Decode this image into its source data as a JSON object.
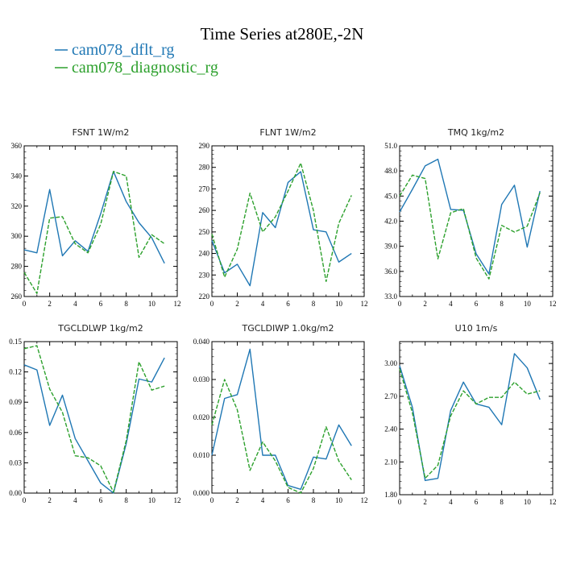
{
  "title": "Time Series at280E,-2N",
  "colors": {
    "dflt": "#1f77b4",
    "diag": "#2ca02c",
    "axis": "#000000"
  },
  "legend": [
    {
      "label": "cam078_dflt_rg",
      "color": "#1f77b4",
      "dashed": false
    },
    {
      "label": "cam078_diagnostic_rg",
      "color": "#2ca02c",
      "dashed": true
    }
  ],
  "chart_data": [
    {
      "type": "line",
      "title": "FSNT   1W/m2",
      "x": [
        0,
        1,
        2,
        3,
        4,
        5,
        6,
        7,
        8,
        9,
        10,
        11
      ],
      "xlim": [
        0,
        12
      ],
      "xticks": [
        "0",
        "2",
        "4",
        "6",
        "8",
        "10",
        "12"
      ],
      "ylim": [
        260,
        360
      ],
      "yticks": [
        "260",
        "280",
        "300",
        "320",
        "340",
        "360"
      ],
      "series": [
        {
          "name": "cam078_dflt_rg",
          "values": [
            291,
            289,
            331,
            287,
            297,
            290,
            315,
            343,
            323,
            309,
            299,
            282
          ]
        },
        {
          "name": "cam078_diagnostic_rg",
          "values": [
            276,
            262,
            312,
            313,
            295,
            289,
            308,
            343,
            340,
            286,
            301,
            295
          ]
        }
      ]
    },
    {
      "type": "line",
      "title": "FLNT   1W/m2",
      "x": [
        0,
        1,
        2,
        3,
        4,
        5,
        6,
        7,
        8,
        9,
        10,
        11
      ],
      "xlim": [
        0,
        12
      ],
      "xticks": [
        "0",
        "2",
        "4",
        "6",
        "8",
        "10",
        "12"
      ],
      "ylim": [
        220,
        290
      ],
      "yticks": [
        "220",
        "230",
        "240",
        "250",
        "260",
        "270",
        "280",
        "290"
      ],
      "series": [
        {
          "name": "cam078_dflt_rg",
          "values": [
            246,
            231,
            235,
            225,
            259,
            252,
            273,
            278,
            251,
            250,
            236,
            240
          ]
        },
        {
          "name": "cam078_diagnostic_rg",
          "values": [
            249,
            229,
            242,
            268,
            250,
            257,
            269,
            282,
            260,
            227,
            254,
            267
          ]
        }
      ]
    },
    {
      "type": "line",
      "title": "TMQ   1kg/m2",
      "x": [
        0,
        1,
        2,
        3,
        4,
        5,
        6,
        7,
        8,
        9,
        10,
        11
      ],
      "xlim": [
        0,
        12
      ],
      "xticks": [
        "0",
        "2",
        "4",
        "6",
        "8",
        "10",
        "12"
      ],
      "ylim": [
        33,
        51
      ],
      "yticks": [
        "33.0",
        "36.0",
        "39.0",
        "42.0",
        "45.0",
        "48.0",
        "51.0"
      ],
      "series": [
        {
          "name": "cam078_dflt_rg",
          "values": [
            43.1,
            45.8,
            48.6,
            49.4,
            43.4,
            43.3,
            38.1,
            35.7,
            44.0,
            46.3,
            38.9,
            45.6
          ]
        },
        {
          "name": "cam078_diagnostic_rg",
          "values": [
            45.0,
            47.5,
            47.1,
            37.5,
            43.0,
            43.5,
            37.6,
            35.1,
            41.5,
            40.7,
            41.4,
            45.4
          ]
        }
      ]
    },
    {
      "type": "line",
      "title": "TGCLDLWP   1kg/m2",
      "x": [
        0,
        1,
        2,
        3,
        4,
        5,
        6,
        7,
        8,
        9,
        10,
        11
      ],
      "xlim": [
        0,
        12
      ],
      "xticks": [
        "0",
        "2",
        "4",
        "6",
        "8",
        "10",
        "12"
      ],
      "ylim": [
        0,
        0.15
      ],
      "yticks": [
        "0.00",
        "0.03",
        "0.06",
        "0.09",
        "0.12",
        "0.15"
      ],
      "series": [
        {
          "name": "cam078_dflt_rg",
          "values": [
            0.127,
            0.122,
            0.067,
            0.097,
            0.054,
            0.032,
            0.01,
            0.0,
            0.049,
            0.113,
            0.11,
            0.134
          ]
        },
        {
          "name": "cam078_diagnostic_rg",
          "values": [
            0.143,
            0.146,
            0.103,
            0.08,
            0.037,
            0.035,
            0.027,
            0.001,
            0.052,
            0.13,
            0.102,
            0.106
          ]
        }
      ]
    },
    {
      "type": "line",
      "title": "TGCLDIWP   1.0kg/m2",
      "x": [
        0,
        1,
        2,
        3,
        4,
        5,
        6,
        7,
        8,
        9,
        10,
        11
      ],
      "xlim": [
        0,
        12
      ],
      "xticks": [
        "0",
        "2",
        "4",
        "6",
        "8",
        "10",
        "12"
      ],
      "ylim": [
        0,
        0.04
      ],
      "yticks": [
        "0.000",
        "0.010",
        "0.020",
        "0.030",
        "0.040"
      ],
      "series": [
        {
          "name": "cam078_dflt_rg",
          "values": [
            0.01,
            0.025,
            0.026,
            0.038,
            0.01,
            0.01,
            0.002,
            0.001,
            0.0095,
            0.009,
            0.018,
            0.0125
          ]
        },
        {
          "name": "cam078_diagnostic_rg",
          "values": [
            0.018,
            0.03,
            0.022,
            0.006,
            0.0135,
            0.0085,
            0.0015,
            0.0,
            0.0065,
            0.0175,
            0.0085,
            0.0035
          ]
        }
      ]
    },
    {
      "type": "line",
      "title": "U10   1m/s",
      "x": [
        0,
        1,
        2,
        3,
        4,
        5,
        6,
        7,
        8,
        9,
        10,
        11
      ],
      "xlim": [
        0,
        12
      ],
      "xticks": [
        "0",
        "2",
        "4",
        "6",
        "8",
        "10",
        "12"
      ],
      "ylim": [
        1.8,
        3.2
      ],
      "yticks": [
        "1.80",
        "2.10",
        "2.40",
        "2.70",
        "3.00"
      ],
      "series": [
        {
          "name": "cam078_dflt_rg",
          "values": [
            2.98,
            2.6,
            1.93,
            1.95,
            2.57,
            2.83,
            2.63,
            2.6,
            2.44,
            3.09,
            2.96,
            2.67
          ]
        },
        {
          "name": "cam078_diagnostic_rg",
          "values": [
            2.95,
            2.55,
            1.95,
            2.07,
            2.52,
            2.75,
            2.63,
            2.69,
            2.69,
            2.83,
            2.72,
            2.75
          ]
        }
      ]
    }
  ]
}
